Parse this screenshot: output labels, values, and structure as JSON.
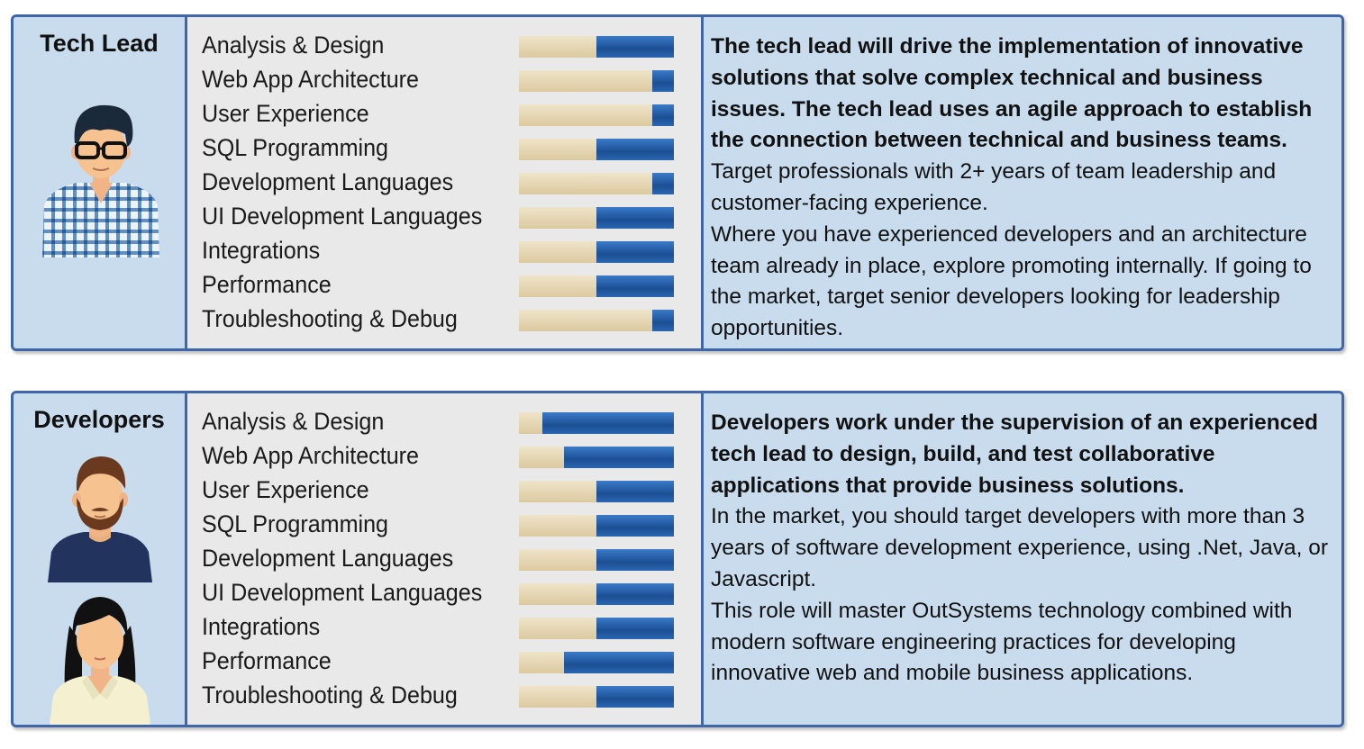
{
  "roles": [
    {
      "title": "Tech Lead",
      "skills": [
        {
          "label": "Analysis & Design",
          "level": 0.5
        },
        {
          "label": "Web App Architecture",
          "level": 0.86
        },
        {
          "label": "User Experience",
          "level": 0.86
        },
        {
          "label": "SQL Programming",
          "level": 0.5
        },
        {
          "label": "Development Languages",
          "level": 0.86
        },
        {
          "label": "UI Development Languages",
          "level": 0.5
        },
        {
          "label": "Integrations",
          "level": 0.5
        },
        {
          "label": "Performance",
          "level": 0.5
        },
        {
          "label": "Troubleshooting & Debug",
          "level": 0.86
        }
      ],
      "summary": "The tech lead will drive the implementation of innovative solutions that solve complex technical and business issues. The tech lead uses an agile approach to establish the connection between technical and business teams.",
      "paragraphs": [
        "Target professionals with 2+ years of team leadership and customer-facing experience.",
        "Where you have experienced developers and an architecture team already in place, explore promoting internally. If going to the market, target senior developers looking for leadership opportunities."
      ],
      "avatars": [
        "tech-lead-avatar-icon"
      ]
    },
    {
      "title": "Developers",
      "skills": [
        {
          "label": "Analysis & Design",
          "level": 0.15
        },
        {
          "label": "Web App Architecture",
          "level": 0.29
        },
        {
          "label": "User Experience",
          "level": 0.5
        },
        {
          "label": "SQL Programming",
          "level": 0.5
        },
        {
          "label": "Development Languages",
          "level": 0.5
        },
        {
          "label": "UI Development Languages",
          "level": 0.5
        },
        {
          "label": "Integrations",
          "level": 0.5
        },
        {
          "label": "Performance",
          "level": 0.29
        },
        {
          "label": "Troubleshooting & Debug",
          "level": 0.5
        }
      ],
      "summary": "Developers work under the supervision of an experienced tech lead to design, build, and test collaborative applications that provide business solutions.",
      "paragraphs": [
        "In the market, you should target developers with more than 3 years of software development experience, using .Net, Java, or Javascript.",
        "This role will master OutSystems technology combined with modern software engineering practices for developing innovative web and mobile business applications."
      ],
      "avatars": [
        "male-developer-avatar-icon",
        "female-developer-avatar-icon"
      ]
    }
  ],
  "colors": {
    "border": "#3f66a8",
    "panel": "#c8dcee",
    "skills_panel": "#e9e9ea",
    "bar_known": "#e6d8b5",
    "bar_remaining": "#1e5ba8"
  }
}
